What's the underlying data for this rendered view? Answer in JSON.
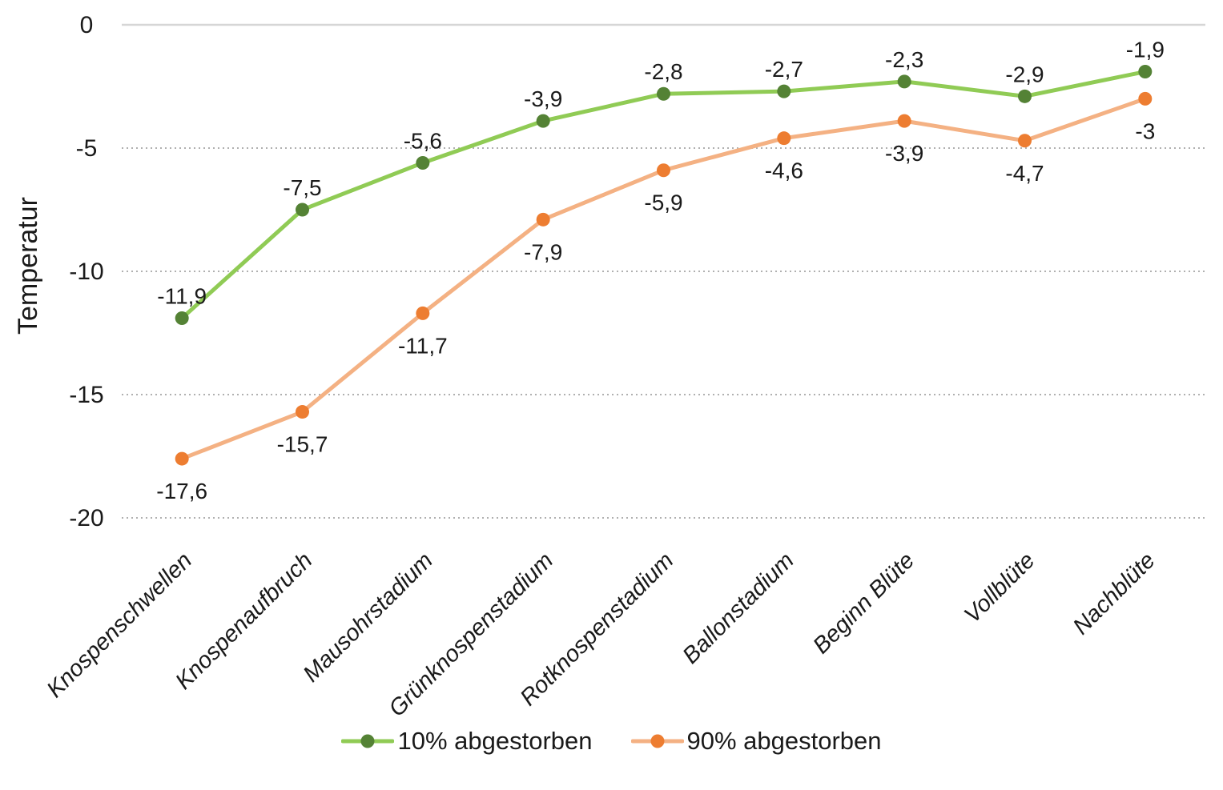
{
  "chart_data": {
    "type": "line",
    "title": "",
    "xlabel": "",
    "ylabel": "Temperatur",
    "ylim": [
      -20,
      0
    ],
    "grid": "horizontal-dotted",
    "legend_position": "bottom",
    "y_ticks": [
      {
        "value": 0,
        "label": "0"
      },
      {
        "value": -5,
        "label": "-5"
      },
      {
        "value": -10,
        "label": "-10"
      },
      {
        "value": -15,
        "label": "-15"
      },
      {
        "value": -20,
        "label": "-20"
      }
    ],
    "categories": [
      "Knospenschwellen",
      "Knospenaufbruch",
      "Mausohrstadium",
      "Grünknospenstadium",
      "Rotknospenstadium",
      "Ballonstadium",
      "Beginn Blüte",
      "Vollblüte",
      "Nachblüte"
    ],
    "series": [
      {
        "name": "10% abgestorben",
        "line_color": "#90CB55",
        "marker_color": "#548235",
        "label_position": "above",
        "values": [
          -11.9,
          -7.5,
          -5.6,
          -3.9,
          -2.8,
          -2.7,
          -2.3,
          -2.9,
          -1.9
        ],
        "labels": [
          "-11,9",
          "-7,5",
          "-5,6",
          "-3,9",
          "-2,8",
          "-2,7",
          "-2,3",
          "-2,9",
          "-1,9"
        ]
      },
      {
        "name": "90% abgestorben",
        "line_color": "#F4B183",
        "marker_color": "#ED7D31",
        "label_position": "below",
        "values": [
          -17.6,
          -15.7,
          -11.7,
          -7.9,
          -5.9,
          -4.6,
          -3.9,
          -4.7,
          -3
        ],
        "labels": [
          "-17,6",
          "-15,7",
          "-11,7",
          "-7,9",
          "-5,9",
          "-4,6",
          "-3,9",
          "-4,7",
          "-3"
        ]
      }
    ],
    "colors": {
      "axis_line": "#D6D6D6",
      "gridline": "#B0B0B0",
      "text": "#1a1a1a"
    }
  }
}
